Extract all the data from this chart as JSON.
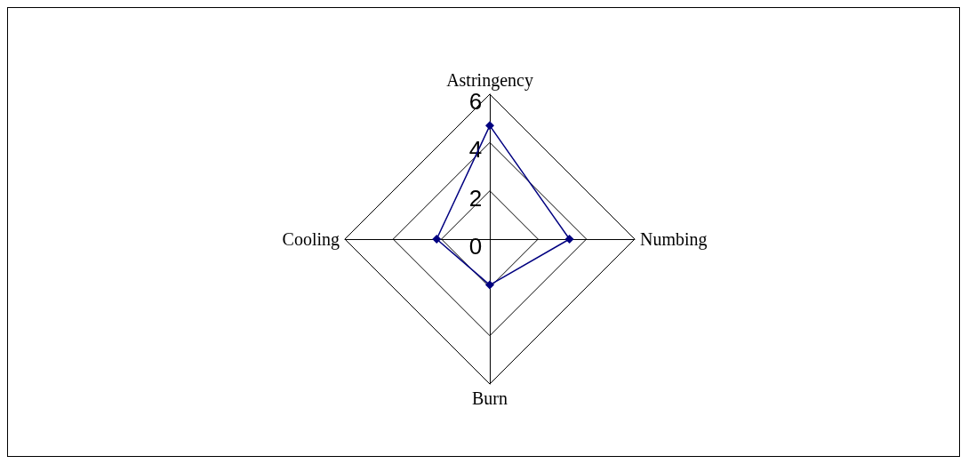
{
  "chart_data": {
    "type": "radar",
    "categories": [
      "Astringency",
      "Numbing",
      "Burn",
      "Cooling"
    ],
    "series": [
      {
        "color": "#000080",
        "values": [
          4.7,
          3.3,
          1.9,
          2.2
        ]
      }
    ],
    "ylim": [
      0,
      6
    ],
    "yticks": [
      0,
      2,
      4,
      6
    ],
    "marker": "diamond"
  }
}
